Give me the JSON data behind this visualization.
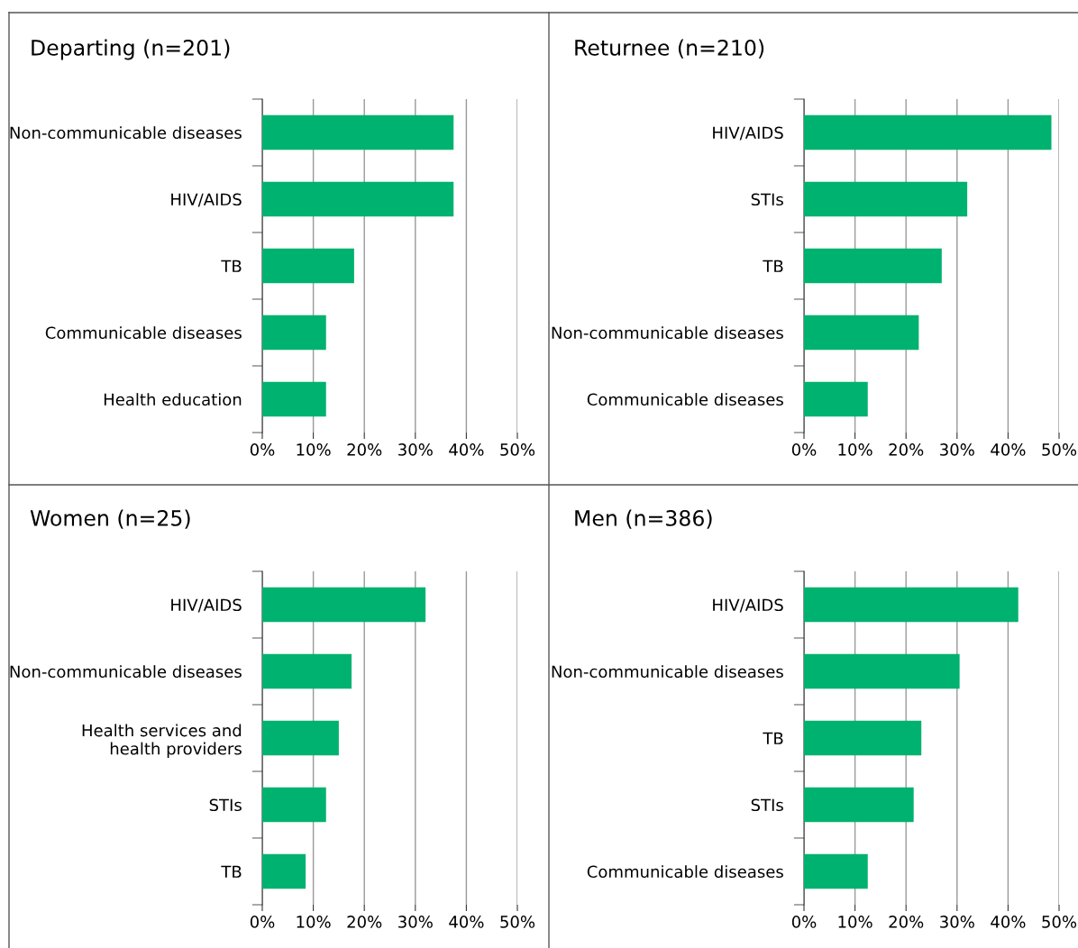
{
  "chart_data": [
    {
      "type": "bar",
      "orientation": "horizontal",
      "title": "Departing (n=201)",
      "categories": [
        "Non-communicable diseases",
        "HIV/AIDS",
        "TB",
        "Communicable diseases",
        "Health education"
      ],
      "values": [
        37.5,
        37.5,
        18,
        12.5,
        12.5
      ],
      "color": "#00b26f",
      "xlim": [
        0,
        50
      ],
      "xticks": [
        {
          "value": 0,
          "label": "0%"
        },
        {
          "value": 10,
          "label": "10%"
        },
        {
          "value": 20,
          "label": "20%"
        },
        {
          "value": 30,
          "label": "30%"
        },
        {
          "value": 40,
          "label": "40%"
        },
        {
          "value": 50,
          "label": "50%"
        }
      ],
      "grid": "x",
      "legend": false
    },
    {
      "type": "bar",
      "orientation": "horizontal",
      "title": "Returnee (n=210)",
      "categories": [
        "HIV/AIDS",
        "STIs",
        "TB",
        "Non-communicable diseases",
        "Communicable diseases"
      ],
      "values": [
        48.5,
        32,
        27,
        22.5,
        12.5
      ],
      "color": "#00b26f",
      "xlim": [
        0,
        50
      ],
      "xticks": [
        {
          "value": 0,
          "label": "0%"
        },
        {
          "value": 10,
          "label": "10%"
        },
        {
          "value": 20,
          "label": "20%"
        },
        {
          "value": 30,
          "label": "30%"
        },
        {
          "value": 40,
          "label": "40%"
        },
        {
          "value": 50,
          "label": "50%"
        }
      ],
      "grid": "x",
      "legend": false
    },
    {
      "type": "bar",
      "orientation": "horizontal",
      "title": "Women (n=25)",
      "categories": [
        "HIV/AIDS",
        "Non-communicable diseases",
        "Health services and\nhealth providers",
        "STIs",
        "TB"
      ],
      "values": [
        32,
        17.5,
        15,
        12.5,
        8.5
      ],
      "color": "#00b26f",
      "xlim": [
        0,
        50
      ],
      "xticks": [
        {
          "value": 0,
          "label": "0%"
        },
        {
          "value": 10,
          "label": "10%"
        },
        {
          "value": 20,
          "label": "20%"
        },
        {
          "value": 30,
          "label": "30%"
        },
        {
          "value": 40,
          "label": "40%"
        },
        {
          "value": 50,
          "label": "50%"
        }
      ],
      "grid": "x",
      "legend": false
    },
    {
      "type": "bar",
      "orientation": "horizontal",
      "title": "Men (n=386)",
      "categories": [
        "HIV/AIDS",
        "Non-communicable diseases",
        "TB",
        "STIs",
        "Communicable diseases"
      ],
      "values": [
        42,
        30.5,
        23,
        21.5,
        12.5
      ],
      "color": "#00b26f",
      "xlim": [
        0,
        50
      ],
      "xticks": [
        {
          "value": 0,
          "label": "0%"
        },
        {
          "value": 10,
          "label": "10%"
        },
        {
          "value": 20,
          "label": "20%"
        },
        {
          "value": 30,
          "label": "30%"
        },
        {
          "value": 40,
          "label": "40%"
        },
        {
          "value": 50,
          "label": "50%"
        }
      ],
      "grid": "x",
      "legend": false
    }
  ]
}
